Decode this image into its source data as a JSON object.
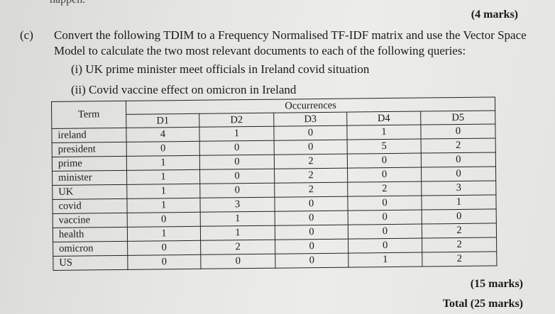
{
  "top_fragment": "happen.",
  "marks_top": "(4 marks)",
  "part_label": "(c)",
  "question_lines": [
    "Convert the following TDIM to a Frequency Normalised TF-IDF matrix and use the Vector Space",
    "Model to calculate the two most relevant documents to each of the following queries:"
  ],
  "queries": [
    "(i) UK prime minister meet officials in Ireland covid situation",
    "(ii) Covid vaccine effect on omicron in Ireland"
  ],
  "table": {
    "term_header": "Term",
    "occurrences_header": "Occurrences",
    "documents": [
      "D1",
      "D2",
      "D3",
      "D4",
      "D5"
    ],
    "rows": [
      {
        "term": "ireland",
        "values": [
          "4",
          "1",
          "0",
          "1",
          "0"
        ]
      },
      {
        "term": "president",
        "values": [
          "0",
          "0",
          "0",
          "5",
          "2"
        ]
      },
      {
        "term": "prime",
        "values": [
          "1",
          "0",
          "2",
          "0",
          "0"
        ]
      },
      {
        "term": "minister",
        "values": [
          "1",
          "0",
          "2",
          "0",
          "0"
        ]
      },
      {
        "term": "UK",
        "values": [
          "1",
          "0",
          "2",
          "2",
          "3"
        ]
      },
      {
        "term": "covid",
        "values": [
          "1",
          "3",
          "0",
          "0",
          "1"
        ]
      },
      {
        "term": "vaccine",
        "values": [
          "0",
          "1",
          "0",
          "0",
          "0"
        ]
      },
      {
        "term": "health",
        "values": [
          "1",
          "1",
          "0",
          "0",
          "2"
        ]
      },
      {
        "term": "omicron",
        "values": [
          "0",
          "2",
          "0",
          "0",
          "2"
        ]
      },
      {
        "term": "US",
        "values": [
          "0",
          "0",
          "0",
          "1",
          "2"
        ]
      }
    ]
  },
  "marks_bottom": "(15 marks)",
  "total": "Total (25 marks)"
}
